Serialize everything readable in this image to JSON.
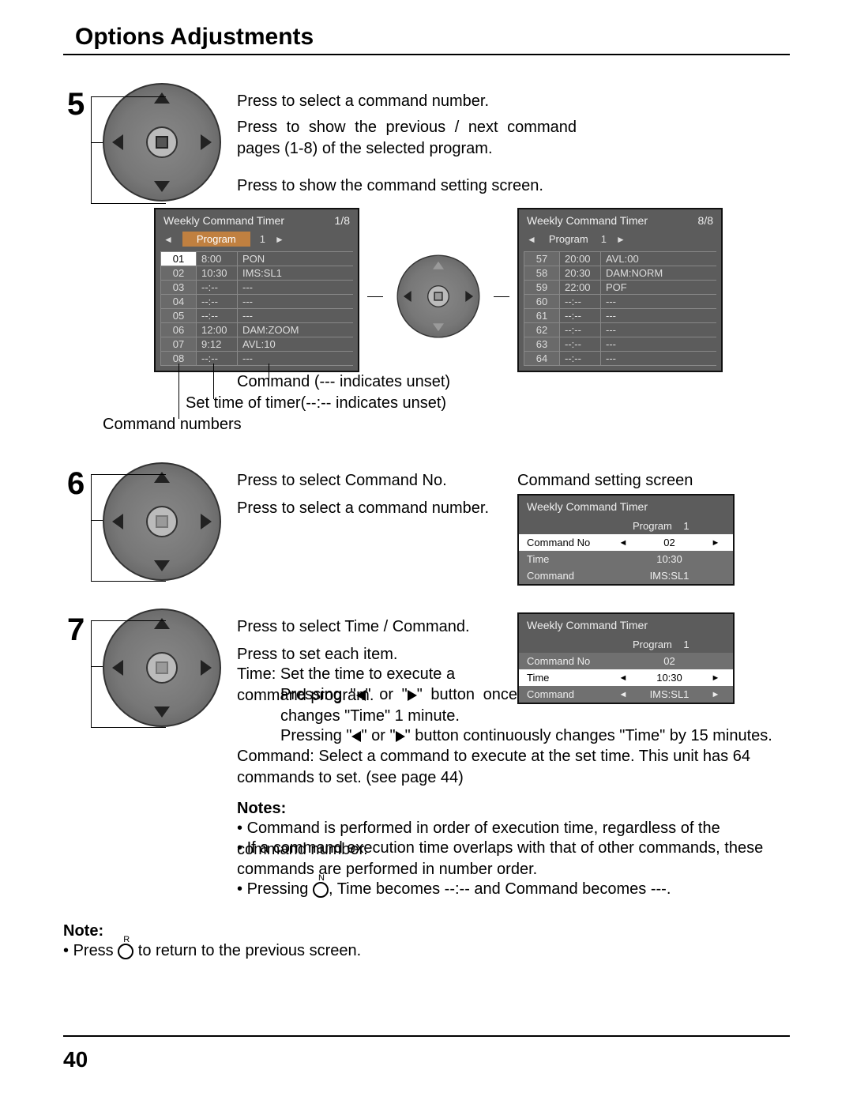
{
  "page": {
    "title": "Options Adjustments",
    "number": "40"
  },
  "step5": {
    "line1": "Press to select a command number.",
    "line2": "Press to show the previous / next command pages (1-8) of the selected program.",
    "line3": "Press to show the command setting screen.",
    "osd1": {
      "title": "Weekly Command Timer",
      "page": "1/8",
      "program_label": "Program",
      "program_value": "1",
      "rows": [
        {
          "n": "01",
          "t": "8:00",
          "c": "PON",
          "white": true
        },
        {
          "n": "02",
          "t": "10:30",
          "c": "IMS:SL1",
          "white": false
        },
        {
          "n": "03",
          "t": "--:--",
          "c": "---",
          "white": false
        },
        {
          "n": "04",
          "t": "--:--",
          "c": "---",
          "white": false
        },
        {
          "n": "05",
          "t": "--:--",
          "c": "---",
          "white": false
        },
        {
          "n": "06",
          "t": "12:00",
          "c": "DAM:ZOOM",
          "white": false
        },
        {
          "n": "07",
          "t": "9:12",
          "c": "AVL:10",
          "white": false
        },
        {
          "n": "08",
          "t": "--:--",
          "c": "---",
          "white": false
        }
      ]
    },
    "osd2": {
      "title": "Weekly Command Timer",
      "page": "8/8",
      "program_label": "Program",
      "program_value": "1",
      "rows": [
        {
          "n": "57",
          "t": "20:00",
          "c": "AVL:00",
          "white": false
        },
        {
          "n": "58",
          "t": "20:30",
          "c": "DAM:NORM",
          "white": false
        },
        {
          "n": "59",
          "t": "22:00",
          "c": "POF",
          "white": false
        },
        {
          "n": "60",
          "t": "--:--",
          "c": "---",
          "white": false
        },
        {
          "n": "61",
          "t": "--:--",
          "c": "---",
          "white": false
        },
        {
          "n": "62",
          "t": "--:--",
          "c": "---",
          "white": false
        },
        {
          "n": "63",
          "t": "--:--",
          "c": "---",
          "white": false
        },
        {
          "n": "64",
          "t": "--:--",
          "c": "---",
          "white": false
        }
      ]
    },
    "caption_cmd": "Command (--- indicates unset)",
    "caption_time": "Set time of timer(--:-- indicates unset)",
    "caption_numbers": "Command numbers"
  },
  "step6": {
    "line1": "Press to select Command No.",
    "line2": "Press to select a command number.",
    "panel_title": "Command setting screen",
    "panel": {
      "title": "Weekly Command Timer",
      "program_label": "Program",
      "program_value": "1",
      "rows": [
        {
          "label": "Command No",
          "val": "02",
          "white": true,
          "arrows": true
        },
        {
          "label": "Time",
          "val": "10:30",
          "white": false,
          "arrows": false
        },
        {
          "label": "Command",
          "val": "IMS:SL1",
          "white": false,
          "arrows": false
        }
      ]
    }
  },
  "step7": {
    "line1": "Press to select Time / Command.",
    "line2": "Press to set each item.",
    "time_lead": "Time:",
    "time_text": "Set the time to execute a command program.",
    "time_p1a": "Pressing \"",
    "time_p1b": "\" or \"",
    "time_p1c": "\" button once changes \"Time\" 1 minute.",
    "time_p2a": "Pressing \"",
    "time_p2b": "\" or \"",
    "time_p2c": "\" button continuously changes \"Time\" by 15 minutes.",
    "cmd_lead": "Command:",
    "cmd_text": "Select a command to execute at the set time. This unit has 64 commands to set. (see page 44)",
    "panel": {
      "title": "Weekly Command Timer",
      "program_label": "Program",
      "program_value": "1",
      "rows": [
        {
          "label": "Command No",
          "val": "02",
          "white": false,
          "arrows": false
        },
        {
          "label": "Time",
          "val": "10:30",
          "white": true,
          "arrows": true
        },
        {
          "label": "Command",
          "val": "IMS:SL1",
          "white": false,
          "arrows": true
        }
      ]
    },
    "notes_head": "Notes:",
    "note1": "Command is performed in order of execution time, regardless of the command number.",
    "note2": "If a command execution time overlaps with that of other commands, these commands are performed in number order.",
    "note3a": "Pressing ",
    "note3b": ", Time becomes --:-- and Command becomes ---.",
    "note3_letter": "N"
  },
  "footnote": {
    "head": "Note:",
    "text_a": "Press ",
    "text_b": " to return to the previous screen.",
    "letter": "R"
  },
  "colors": {
    "osd_bg": "#5c5c5c",
    "osd_prog_bg": "#c08040",
    "text": "#000000"
  }
}
